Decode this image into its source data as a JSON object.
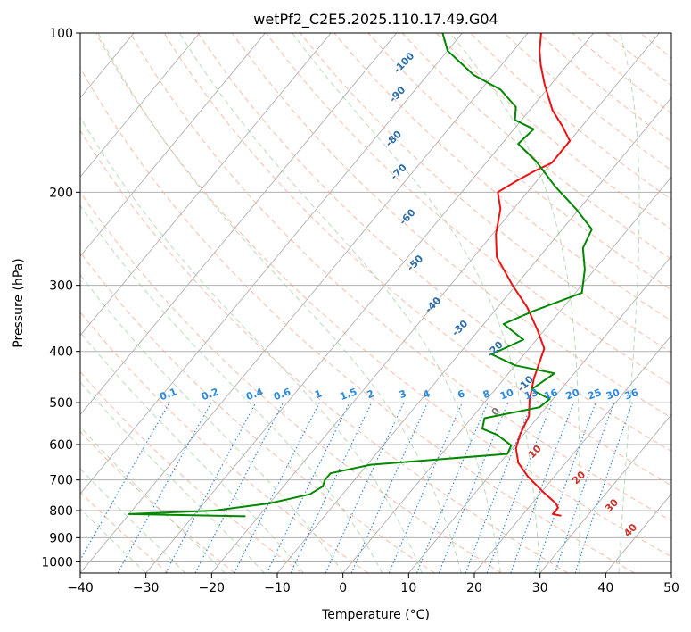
{
  "chart_data": {
    "type": "skew-t",
    "title": "wetPf2_C2E5.2025.110.17.49.G04",
    "xlabel": "Temperature (°C)",
    "ylabel": "Pressure (hPa)",
    "xlim": [
      -40,
      50
    ],
    "ylim": [
      1050,
      100
    ],
    "y_scale": "log",
    "x_ticks": [
      -40,
      -30,
      -20,
      -10,
      0,
      10,
      20,
      30,
      40,
      50
    ],
    "y_ticks": [
      100,
      200,
      300,
      400,
      500,
      600,
      700,
      800,
      900,
      1000
    ],
    "grid": true,
    "mixing_ratio_labels": [
      "0.1",
      "0.2",
      "0.4",
      "0.6",
      "1",
      "1.5",
      "2",
      "3",
      "4",
      "6",
      "8",
      "10",
      "13",
      "16",
      "20",
      "25",
      "30",
      "36"
    ],
    "mixing_ratio_label_pressure": 500,
    "moist_adiabat_labels": [
      {
        "text": "-100",
        "t": -54.5,
        "p": 115
      },
      {
        "text": "-90",
        "t": -51.5,
        "p": 132
      },
      {
        "text": "-80",
        "t": -46.5,
        "p": 160
      },
      {
        "text": "-70",
        "t": -41.5,
        "p": 185
      },
      {
        "text": "-60",
        "t": -34.5,
        "p": 225
      },
      {
        "text": "-50",
        "t": -27.5,
        "p": 275
      },
      {
        "text": "-40",
        "t": -19.5,
        "p": 330
      },
      {
        "text": "-30",
        "t": -12.5,
        "p": 365
      },
      {
        "text": "-20",
        "t": -4.5,
        "p": 400
      },
      {
        "text": "-10",
        "t": 4.5,
        "p": 465
      }
    ],
    "dry_adiabat_labels": [
      {
        "text": "0",
        "t": 3.5,
        "p": 525
      },
      {
        "text": "10",
        "t": 14.5,
        "p": 625
      },
      {
        "text": "20",
        "t": 24.5,
        "p": 700
      },
      {
        "text": "30",
        "t": 33,
        "p": 790
      },
      {
        "text": "40",
        "t": 39,
        "p": 880
      }
    ],
    "series": [
      {
        "name": "",
        "color": "#ee1111",
        "points": [
          [
            26,
            818
          ],
          [
            24.5,
            812
          ],
          [
            24.5,
            790
          ],
          [
            23.6,
            775
          ],
          [
            20,
            735
          ],
          [
            16,
            690
          ],
          [
            12.8,
            650
          ],
          [
            10.6,
            610
          ],
          [
            9.5,
            575
          ],
          [
            8.5,
            530
          ],
          [
            6.6,
            495
          ],
          [
            4.5,
            450
          ],
          [
            2.3,
            395
          ],
          [
            -1,
            365
          ],
          [
            -5.5,
            330
          ],
          [
            -10.5,
            300
          ],
          [
            -16.5,
            265
          ],
          [
            -19.5,
            240
          ],
          [
            -22,
            215
          ],
          [
            -24.5,
            200
          ],
          [
            -23,
            190
          ],
          [
            -21.5,
            182
          ],
          [
            -20,
            176
          ],
          [
            -20,
            160
          ],
          [
            -23,
            150
          ],
          [
            -26.5,
            140
          ],
          [
            -31,
            125
          ],
          [
            -34,
            115
          ],
          [
            -36,
            108
          ],
          [
            -38,
            100
          ]
        ]
      },
      {
        "name": "",
        "color": "#008800",
        "points": [
          [
            -22,
            820
          ],
          [
            -40,
            812
          ],
          [
            -27.5,
            800
          ],
          [
            -24.5,
            790
          ],
          [
            -20,
            775
          ],
          [
            -15,
            745
          ],
          [
            -14,
            720
          ],
          [
            -14.5,
            700
          ],
          [
            -14.5,
            680
          ],
          [
            -9.5,
            655
          ],
          [
            10,
            625
          ],
          [
            9.5,
            602
          ],
          [
            6,
            575
          ],
          [
            3,
            560
          ],
          [
            2,
            535
          ],
          [
            9,
            510
          ],
          [
            9.5,
            492
          ],
          [
            5.5,
            472
          ],
          [
            7,
            440
          ],
          [
            0,
            425
          ],
          [
            -5,
            405
          ],
          [
            -2,
            380
          ],
          [
            -7,
            355
          ],
          [
            -4,
            335
          ],
          [
            1,
            310
          ],
          [
            -1.5,
            280
          ],
          [
            -4.5,
            255
          ],
          [
            -5.5,
            235
          ],
          [
            -10.5,
            215
          ],
          [
            -16.5,
            195
          ],
          [
            -22.5,
            175
          ],
          [
            -27.5,
            162
          ],
          [
            -27,
            152
          ],
          [
            -31,
            146
          ],
          [
            -32.5,
            138
          ],
          [
            -37,
            128
          ],
          [
            -43,
            120
          ],
          [
            -50,
            108
          ],
          [
            -53,
            100
          ]
        ]
      }
    ]
  }
}
